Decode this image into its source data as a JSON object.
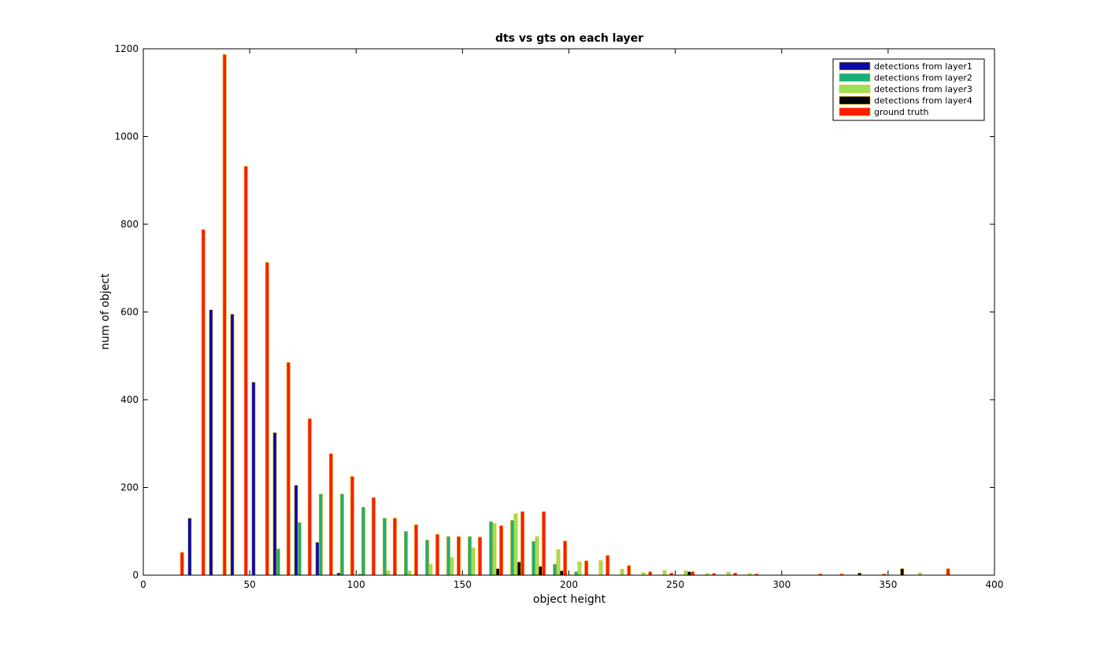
{
  "chart_data": {
    "type": "bar",
    "title": "dts vs gts on each layer",
    "xlabel": "object height",
    "ylabel": "num of object",
    "xlim": [
      0,
      400
    ],
    "ylim": [
      0,
      1200
    ],
    "xticks": [
      "0",
      "50",
      "100",
      "150",
      "200",
      "250",
      "300",
      "350",
      "400"
    ],
    "yticks": [
      "0",
      "200",
      "400",
      "600",
      "800",
      "1000",
      "1200"
    ],
    "legend_position": "top-right",
    "grid": false,
    "categories": [
      5,
      15,
      25,
      35,
      45,
      55,
      65,
      75,
      85,
      95,
      105,
      115,
      125,
      135,
      145,
      155,
      165,
      175,
      185,
      195,
      205,
      215,
      225,
      235,
      245,
      255,
      265,
      275,
      285,
      295,
      305,
      315,
      325,
      335,
      345,
      355,
      365,
      375,
      385,
      395
    ],
    "series": [
      {
        "name": "detections from layer1",
        "color": "#0a0aa8",
        "values": [
          0,
          0,
          130,
          605,
          595,
          440,
          325,
          205,
          75,
          5,
          2,
          0,
          0,
          0,
          0,
          0,
          0,
          0,
          0,
          0,
          0,
          0,
          0,
          0,
          0,
          0,
          0,
          0,
          0,
          0,
          0,
          0,
          0,
          0,
          0,
          0,
          0,
          0,
          0,
          0
        ]
      },
      {
        "name": "detections from layer2",
        "color": "#1ab07a",
        "values": [
          0,
          0,
          0,
          0,
          0,
          0,
          60,
          120,
          185,
          185,
          155,
          130,
          100,
          80,
          88,
          88,
          122,
          125,
          77,
          25,
          8,
          0,
          0,
          0,
          0,
          0,
          0,
          0,
          0,
          0,
          0,
          0,
          0,
          0,
          0,
          0,
          0,
          0,
          0,
          0
        ]
      },
      {
        "name": "detections from layer3",
        "color": "#9ce05a",
        "values": [
          0,
          0,
          0,
          0,
          0,
          0,
          0,
          0,
          0,
          0,
          0,
          10,
          10,
          25,
          40,
          62,
          118,
          140,
          88,
          58,
          30,
          33,
          14,
          6,
          11,
          10,
          4,
          7,
          4,
          0,
          0,
          0,
          0,
          0,
          0,
          0,
          5,
          0,
          0,
          0
        ]
      },
      {
        "name": "detections from layer4",
        "color": "#000000",
        "values": [
          0,
          0,
          0,
          0,
          0,
          0,
          0,
          0,
          0,
          0,
          0,
          0,
          0,
          0,
          0,
          0,
          15,
          30,
          20,
          10,
          0,
          0,
          0,
          0,
          0,
          8,
          0,
          0,
          0,
          0,
          0,
          0,
          0,
          5,
          0,
          15,
          0,
          0,
          0,
          0
        ]
      },
      {
        "name": "ground truth",
        "color": "#ff1a00",
        "values": [
          0,
          52,
          788,
          1187,
          932,
          713,
          485,
          357,
          277,
          225,
          177,
          130,
          115,
          93,
          88,
          87,
          113,
          145,
          145,
          78,
          33,
          45,
          22,
          8,
          5,
          8,
          4,
          5,
          3,
          0,
          0,
          3,
          3,
          0,
          3,
          0,
          0,
          15,
          0,
          0
        ]
      }
    ]
  }
}
